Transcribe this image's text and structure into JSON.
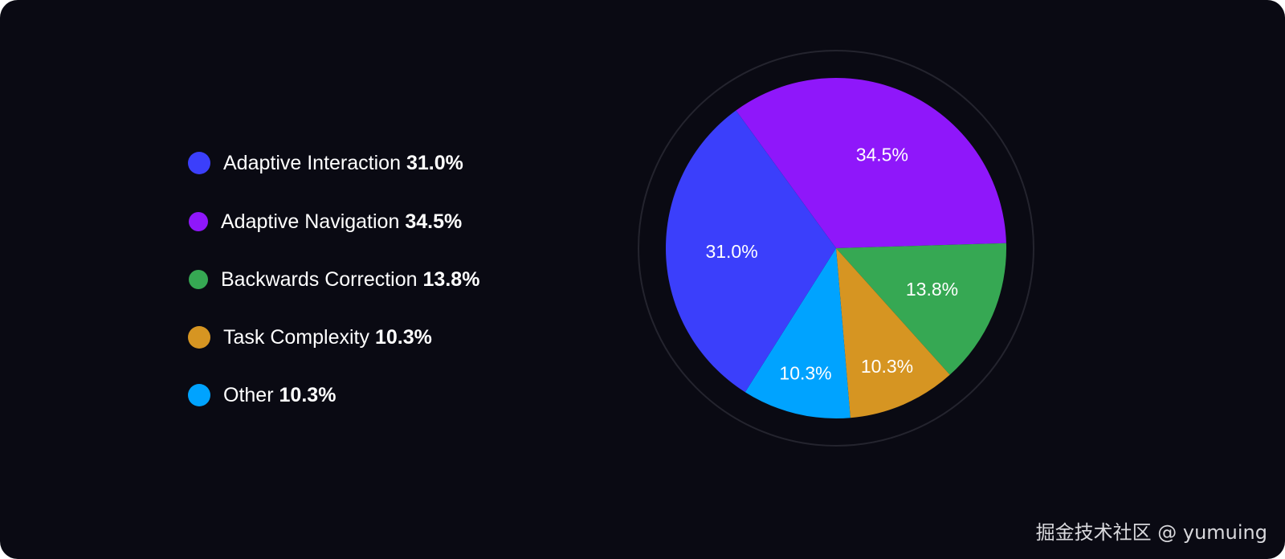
{
  "chart_data": {
    "type": "pie",
    "title": "",
    "legend_position": "left",
    "start_angle_deg": -126,
    "slices": [
      {
        "label": "Adaptive Navigation",
        "value": 34.5,
        "display": "34.5%",
        "color": "#8f17fa"
      },
      {
        "label": "Backwards Correction",
        "value": 13.8,
        "display": "13.8%",
        "color": "#36a853"
      },
      {
        "label": "Task Complexity",
        "value": 10.3,
        "display": "10.3%",
        "color": "#d69522"
      },
      {
        "label": "Other",
        "value": 10.3,
        "display": "10.3%",
        "color": "#00a3ff"
      },
      {
        "label": "Adaptive Interaction",
        "value": 31.0,
        "display": "31.0%",
        "color": "#3b3ffb"
      }
    ],
    "legend": [
      {
        "label": "Adaptive Interaction",
        "display": "31.0%",
        "color": "#3b3ffb"
      },
      {
        "label": "Adaptive Navigation",
        "display": "34.5%",
        "color": "#8f17fa"
      },
      {
        "label": "Backwards Correction",
        "display": "13.8%",
        "color": "#36a853"
      },
      {
        "label": "Task Complexity",
        "display": "10.3%",
        "color": "#d69522"
      },
      {
        "label": "Other",
        "display": "10.3%",
        "color": "#00a3ff"
      }
    ]
  },
  "watermark": "掘金技术社区 @ yumuing"
}
